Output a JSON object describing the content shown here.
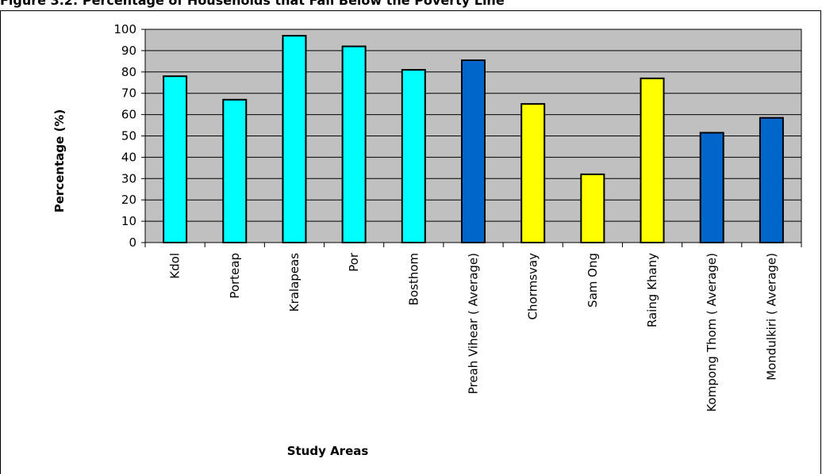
{
  "figure_title": "Figure 3.2: Percentage of Households that Fall Below the Poverty Line",
  "colors": {
    "plot_bg": "#C0C0C0",
    "bar_cyan": "#00FFFF",
    "bar_blue": "#0066CC",
    "bar_yellow": "#FFFF00",
    "outline": "#000000"
  },
  "chart_data": {
    "type": "bar",
    "title": "",
    "xlabel": "Study Areas",
    "ylabel": "Percentage (%)",
    "ylim": [
      0,
      100
    ],
    "yticks": [
      0,
      10,
      20,
      30,
      40,
      50,
      60,
      70,
      80,
      90,
      100
    ],
    "grid": true,
    "legend": "none",
    "categories": [
      "Kdol",
      "Porteap",
      "Kralapeas",
      "Por",
      "Bosthom",
      "Preah Vihear ( Average)",
      "Chormsvay",
      "Sam Ong",
      "Raing Khany",
      "Kompong Thom ( Average)",
      "Mondulkiri ( Average)"
    ],
    "values": [
      78,
      67,
      97,
      92,
      81,
      85.5,
      65,
      32,
      77,
      51.5,
      58.5
    ],
    "bar_colors": [
      "#00FFFF",
      "#00FFFF",
      "#00FFFF",
      "#00FFFF",
      "#00FFFF",
      "#0066CC",
      "#FFFF00",
      "#FFFF00",
      "#FFFF00",
      "#0066CC",
      "#0066CC"
    ]
  }
}
